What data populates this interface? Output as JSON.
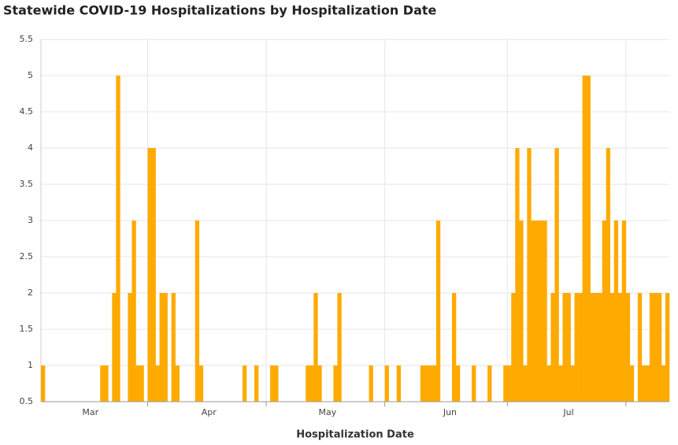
{
  "chart_data": {
    "type": "bar",
    "title": "Statewide COVID-19 Hospitalizations by Hospitalization Date",
    "x_label": "Hospitalization Date",
    "categories": [
      null,
      null,
      null,
      null,
      null,
      null,
      null,
      null,
      null,
      null,
      null,
      null,
      "Mar",
      null,
      null,
      null,
      null,
      null,
      null,
      null,
      null,
      null,
      null,
      null,
      null,
      null,
      null,
      null,
      null,
      null,
      null,
      null,
      null,
      null,
      null,
      null,
      null,
      null,
      null,
      null,
      null,
      null,
      "Apr",
      null,
      null,
      null,
      null,
      null,
      null,
      null,
      null,
      null,
      null,
      null,
      null,
      null,
      null,
      null,
      null,
      null,
      null,
      null,
      null,
      null,
      null,
      null,
      null,
      null,
      null,
      null,
      null,
      null,
      "May",
      null,
      null,
      null,
      null,
      null,
      null,
      null,
      null,
      null,
      null,
      null,
      null,
      null,
      null,
      null,
      null,
      null,
      null,
      null,
      null,
      null,
      null,
      null,
      null,
      null,
      null,
      null,
      null,
      null,
      null,
      "Jun",
      null,
      null,
      null,
      null,
      null,
      null,
      null,
      null,
      null,
      null,
      null,
      null,
      null,
      null,
      null,
      null,
      null,
      null,
      null,
      null,
      null,
      null,
      null,
      null,
      null,
      null,
      null,
      null,
      null,
      "Jul",
      null,
      null,
      null,
      null,
      null,
      null,
      null,
      null,
      null,
      null,
      null,
      null,
      null,
      null,
      null,
      null,
      null,
      null,
      null,
      null,
      null,
      null,
      null,
      null,
      null
    ],
    "values": [
      1,
      null,
      null,
      null,
      null,
      null,
      null,
      null,
      null,
      null,
      null,
      null,
      null,
      null,
      null,
      1,
      1,
      null,
      2,
      5,
      null,
      null,
      2,
      3,
      1,
      1,
      null,
      4,
      4,
      1,
      2,
      2,
      null,
      2,
      1,
      null,
      null,
      null,
      null,
      3,
      1,
      null,
      null,
      null,
      null,
      null,
      null,
      null,
      null,
      null,
      null,
      1,
      null,
      null,
      1,
      null,
      null,
      null,
      1,
      1,
      null,
      null,
      null,
      null,
      null,
      null,
      null,
      1,
      1,
      2,
      1,
      null,
      null,
      null,
      1,
      2,
      null,
      null,
      null,
      null,
      null,
      null,
      null,
      1,
      null,
      null,
      null,
      1,
      null,
      null,
      1,
      null,
      null,
      null,
      null,
      null,
      1,
      1,
      1,
      1,
      3,
      null,
      null,
      null,
      2,
      1,
      null,
      null,
      null,
      1,
      null,
      null,
      null,
      1,
      null,
      null,
      null,
      1,
      1,
      2,
      4,
      3,
      1,
      4,
      3,
      3,
      3,
      3,
      1,
      2,
      4,
      1,
      2,
      2,
      1,
      2,
      2,
      5,
      5,
      2,
      2,
      2,
      3,
      4,
      2,
      3,
      2,
      3,
      2,
      1,
      null,
      2,
      1,
      1,
      2,
      2,
      2,
      1,
      2
    ],
    "color": "#ffaa00",
    "ylim": [
      0.5,
      5.5
    ],
    "yticks": [
      0.5,
      1,
      1.5,
      2,
      2.5,
      3,
      3.5,
      4,
      4.5,
      5,
      5.5
    ],
    "grid": true
  }
}
